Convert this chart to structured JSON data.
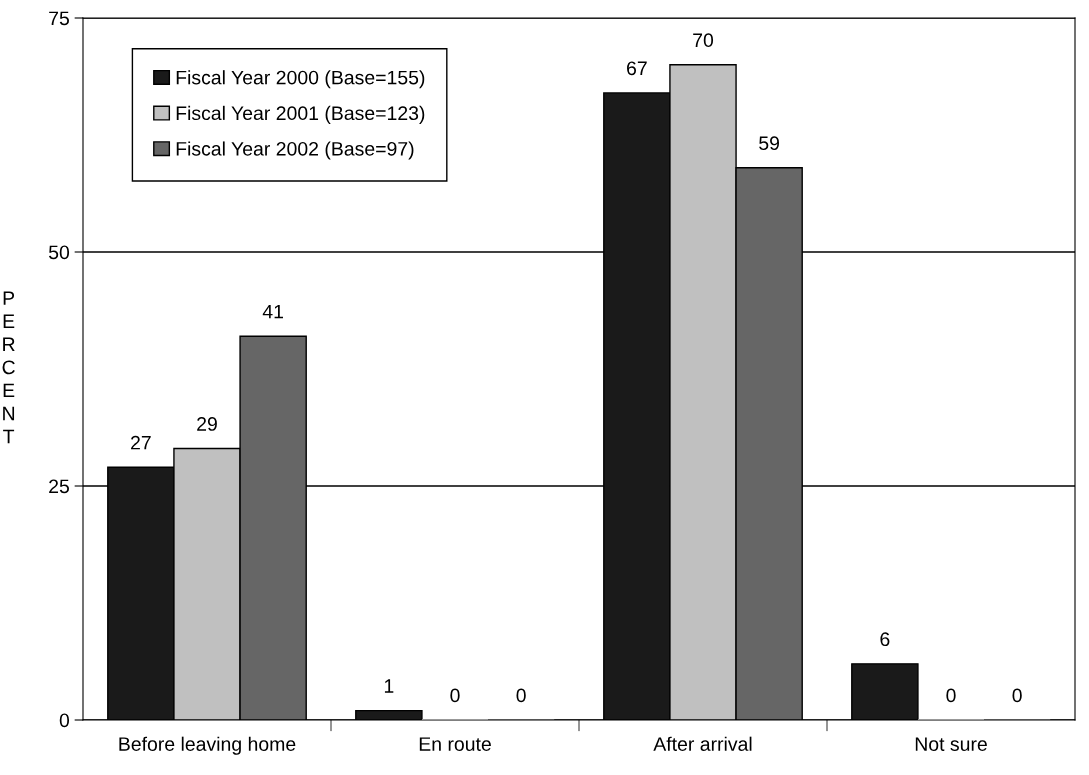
{
  "chart_data": {
    "type": "bar",
    "ylabel": "PERCENT",
    "categories": [
      "Before leaving home",
      "En route",
      "After arrival",
      "Not sure"
    ],
    "series": [
      {
        "name": "Fiscal Year 2000 (Base=155)",
        "color": "#1a1a1a",
        "values": [
          27,
          1,
          67,
          6
        ]
      },
      {
        "name": "Fiscal Year 2001 (Base=123)",
        "color": "#c0c0c0",
        "values": [
          29,
          0,
          70,
          0
        ]
      },
      {
        "name": "Fiscal Year 2002 (Base=97)",
        "color": "#666666",
        "values": [
          41,
          0,
          59,
          0
        ]
      }
    ],
    "ylim": [
      0,
      75
    ],
    "yticks": [
      0,
      25,
      50,
      75
    ],
    "grid": "y",
    "legend": "top left",
    "data_labels": true
  }
}
